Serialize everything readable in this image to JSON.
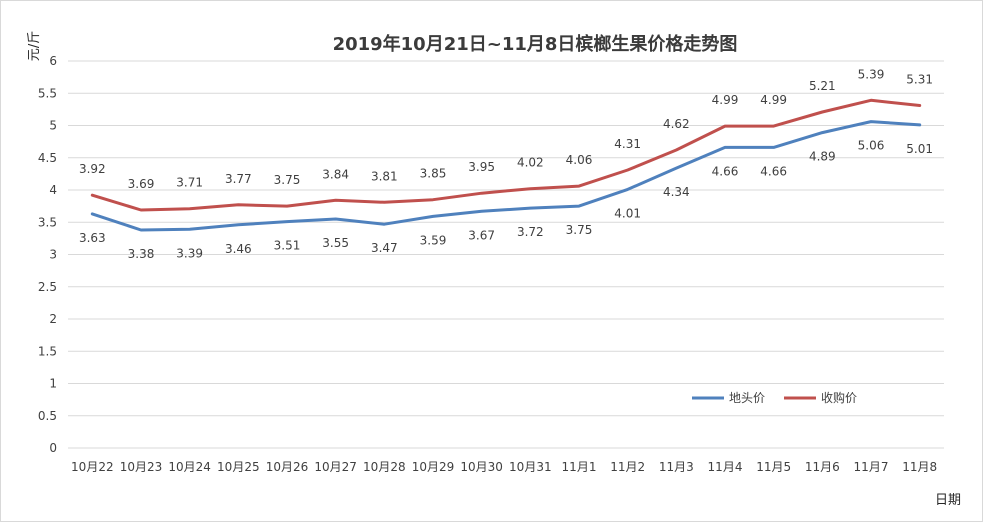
{
  "chart_data": {
    "type": "line",
    "title": "2019年10月21日~11月8日槟榔生果价格走势图",
    "xlabel": "日期",
    "ylabel": "元/斤",
    "categories": [
      "10月22",
      "10月23",
      "10月24",
      "10月25",
      "10月26",
      "10月27",
      "10月28",
      "10月29",
      "10月30",
      "10月31",
      "11月1",
      "11月2",
      "11月3",
      "11月4",
      "11月5",
      "11月6",
      "11月7",
      "11月8"
    ],
    "ylim": [
      0,
      6
    ],
    "yticks": [
      "0",
      "0.5",
      "1",
      "1.5",
      "2",
      "2.5",
      "3",
      "3.5",
      "4",
      "4.5",
      "5",
      "5.5",
      "6"
    ],
    "grid": true,
    "legend_position": "bottom-right",
    "series": [
      {
        "name": "地头价",
        "color": "#4f81bd",
        "label_position": "below",
        "values": [
          3.63,
          3.38,
          3.39,
          3.46,
          3.51,
          3.55,
          3.47,
          3.59,
          3.67,
          3.72,
          3.75,
          4.01,
          4.34,
          4.66,
          4.66,
          4.89,
          5.06,
          5.01
        ],
        "labels": [
          "3.63",
          "3.38",
          "3.39",
          "3.46",
          "3.51",
          "3.55",
          "3.47",
          "3.59",
          "3.67",
          "3.72",
          "3.75",
          "4.01",
          "4.34",
          "4.66",
          "4.66",
          "4.89",
          "5.06",
          "5.01"
        ]
      },
      {
        "name": "收购价",
        "color": "#c0504d",
        "label_position": "above",
        "values": [
          3.92,
          3.69,
          3.71,
          3.77,
          3.75,
          3.84,
          3.81,
          3.85,
          3.95,
          4.02,
          4.06,
          4.31,
          4.62,
          4.99,
          4.99,
          5.21,
          5.39,
          5.31
        ],
        "labels": [
          "3.92",
          "3.69",
          "3.71",
          "3.77",
          "3.75",
          "3.84",
          "3.81",
          "3.85",
          "3.95",
          "4.02",
          "4.06",
          "4.31",
          "4.62",
          "4.99",
          "4.99",
          "5.21",
          "5.39",
          "5.31"
        ]
      }
    ]
  }
}
